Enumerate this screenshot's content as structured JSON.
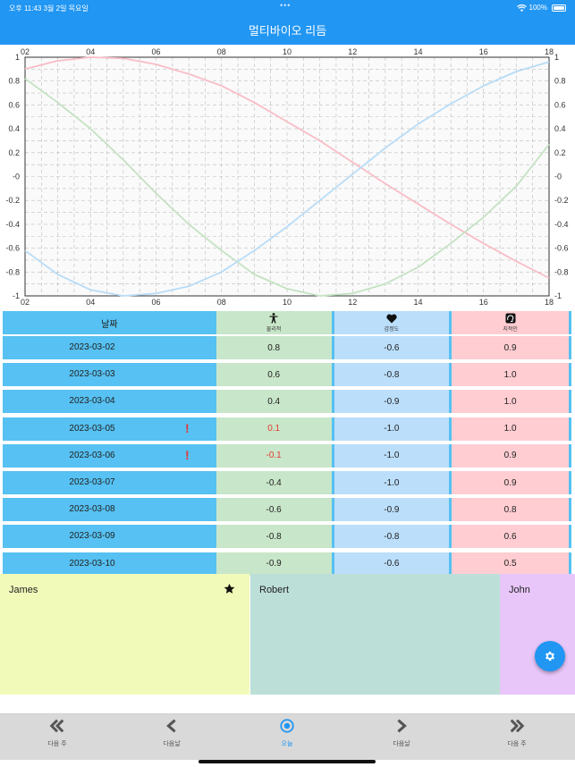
{
  "status": {
    "time": "오후 11:43   3월 2일 목요일",
    "battery": "100%"
  },
  "header": {
    "title": "멀티바이오 리듬"
  },
  "chart_data": {
    "type": "line",
    "x_ticks": [
      "02",
      "04",
      "06",
      "08",
      "10",
      "12",
      "14",
      "16",
      "18"
    ],
    "y_ticks": [
      "1",
      "0.8",
      "0.6",
      "0.4",
      "0.2",
      "-0",
      "-0.2",
      "-0.4",
      "-0.6",
      "-0.8",
      "-1"
    ],
    "xlim": [
      2,
      18
    ],
    "ylim": [
      -1,
      1
    ],
    "grid": true,
    "series": [
      {
        "color": "#F9BDC6",
        "x": [
          2,
          3,
          4,
          5,
          6,
          7,
          8,
          9,
          10,
          11,
          12,
          13,
          14,
          15,
          16,
          17,
          18
        ],
        "y": [
          0.9,
          0.97,
          1.0,
          0.99,
          0.94,
          0.86,
          0.76,
          0.62,
          0.46,
          0.3,
          0.12,
          -0.06,
          -0.23,
          -0.4,
          -0.56,
          -0.71,
          -0.85
        ]
      },
      {
        "color": "#C4E2C2",
        "x": [
          2,
          3,
          4,
          5,
          6,
          7,
          8,
          9,
          10,
          11,
          12,
          13,
          14,
          15,
          16,
          17,
          18
        ],
        "y": [
          0.82,
          0.62,
          0.4,
          0.14,
          -0.14,
          -0.4,
          -0.62,
          -0.82,
          -0.94,
          -1.0,
          -0.98,
          -0.9,
          -0.76,
          -0.56,
          -0.34,
          -0.08,
          0.27
        ]
      },
      {
        "color": "#B8DCF7",
        "x": [
          2,
          3,
          4,
          5,
          6,
          7,
          8,
          9,
          10,
          11,
          12,
          13,
          14,
          15,
          16,
          17,
          18
        ],
        "y": [
          -0.62,
          -0.82,
          -0.95,
          -1.0,
          -0.98,
          -0.92,
          -0.8,
          -0.62,
          -0.42,
          -0.2,
          0.02,
          0.24,
          0.44,
          0.61,
          0.76,
          0.88,
          0.96
        ]
      }
    ]
  },
  "table": {
    "header": {
      "date": "날짜",
      "physical": "물리적",
      "emotional": "감정도",
      "intellectual": "지적인"
    },
    "rows": [
      {
        "date": "2023-03-02",
        "physical": "0.8",
        "emotional": "-0.6",
        "intellectual": "0.9",
        "warn": false
      },
      {
        "date": "2023-03-03",
        "physical": "0.6",
        "emotional": "-0.8",
        "intellectual": "1.0",
        "warn": false
      },
      {
        "date": "2023-03-04",
        "physical": "0.4",
        "emotional": "-0.9",
        "intellectual": "1.0",
        "warn": false
      },
      {
        "date": "2023-03-05",
        "physical": "0.1",
        "emotional": "-1.0",
        "intellectual": "1.0",
        "warn": true
      },
      {
        "date": "2023-03-06",
        "physical": "-0.1",
        "emotional": "-1.0",
        "intellectual": "0.9",
        "warn": true
      },
      {
        "date": "2023-03-07",
        "physical": "-0.4",
        "emotional": "-1.0",
        "intellectual": "0.9",
        "warn": false
      },
      {
        "date": "2023-03-08",
        "physical": "-0.6",
        "emotional": "-0.9",
        "intellectual": "0.8",
        "warn": false
      },
      {
        "date": "2023-03-09",
        "physical": "-0.8",
        "emotional": "-0.8",
        "intellectual": "0.6",
        "warn": false
      },
      {
        "date": "2023-03-10",
        "physical": "-0.9",
        "emotional": "-0.6",
        "intellectual": "0.5",
        "warn": false
      }
    ],
    "warn_mark": "!"
  },
  "people": [
    {
      "name": "James",
      "color": "#F2FAB9",
      "starred": true
    },
    {
      "name": "Robert",
      "color": "#BCDFD8",
      "starred": false
    },
    {
      "name": "John",
      "color": "#E8C6FA",
      "starred": false
    }
  ],
  "bottom_nav": [
    {
      "label": "다음 주",
      "icon": "double-chevron-left-icon"
    },
    {
      "label": "다음날",
      "icon": "chevron-left-icon"
    },
    {
      "label": "오늘",
      "icon": "today-circle-icon",
      "active": true
    },
    {
      "label": "다음날",
      "icon": "chevron-right-icon"
    },
    {
      "label": "다음 주",
      "icon": "double-chevron-right-icon"
    }
  ],
  "colors": {
    "accent": "#2196F3",
    "date_cell": "#56C1F2",
    "warn": "#E53935"
  }
}
